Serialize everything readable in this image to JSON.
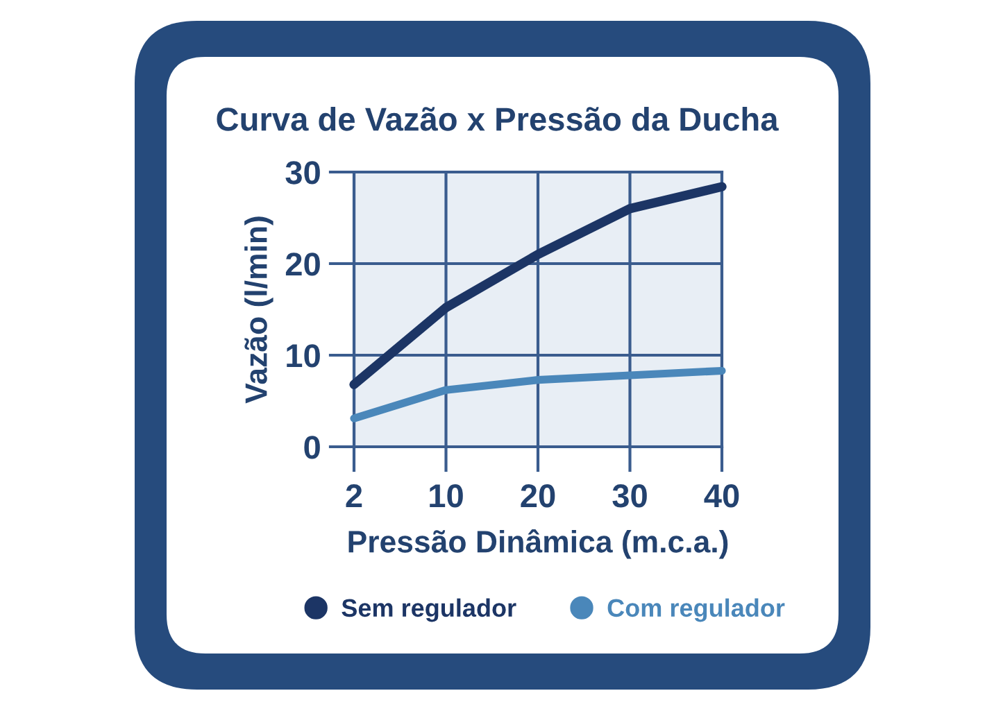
{
  "chart_data": {
    "type": "line",
    "title": "Curva de Vazão x Pressão da Ducha",
    "xlabel": "Pressão Dinâmica (m.c.a.)",
    "ylabel": "Vazão (l/min)",
    "categories": [
      "2",
      "10",
      "20",
      "30",
      "40"
    ],
    "series": [
      {
        "name": "Sem regulador",
        "color": "#1c3565",
        "values": [
          6.8,
          15.2,
          21,
          26,
          28.4
        ]
      },
      {
        "name": "Com regulador",
        "color": "#4a87ba",
        "values": [
          3.1,
          6.2,
          7.3,
          7.8,
          8.3
        ]
      }
    ],
    "ylim": [
      0,
      30
    ],
    "yticks": [
      0,
      10,
      20,
      30
    ],
    "grid": true,
    "legend": "bottom",
    "marker": "none",
    "line_style": "solid"
  }
}
